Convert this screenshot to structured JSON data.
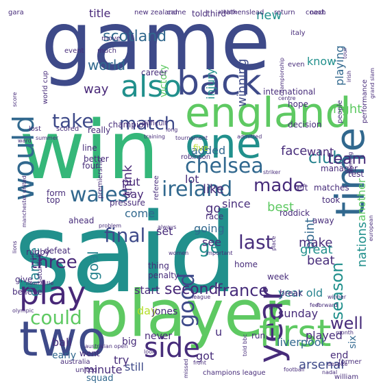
{
  "words": [
    {
      "text": "said",
      "color": "#21908c",
      "orientation": "horizontal"
    },
    {
      "text": "game",
      "color": "#3e4a89",
      "orientation": "horizontal"
    },
    {
      "text": "win",
      "color": "#35b779",
      "orientation": "horizontal"
    },
    {
      "text": "player",
      "color": "#5ec962",
      "orientation": "horizontal"
    },
    {
      "text": "england",
      "color": "#5ec962",
      "orientation": "horizontal"
    },
    {
      "text": "time",
      "color": "#31688e",
      "orientation": "vertical"
    },
    {
      "text": "one",
      "color": "#21908c",
      "orientation": "horizontal"
    },
    {
      "text": "back",
      "color": "#3e4a89",
      "orientation": "horizontal"
    },
    {
      "text": "two",
      "color": "#3e4a89",
      "orientation": "horizontal"
    },
    {
      "text": "year",
      "color": "#472c7a",
      "orientation": "vertical"
    },
    {
      "text": "first",
      "color": "#5ec962",
      "orientation": "horizontal"
    },
    {
      "text": "would",
      "color": "#31688e",
      "orientation": "vertical"
    },
    {
      "text": "also",
      "color": "#21908c",
      "orientation": "horizontal"
    },
    {
      "text": "play",
      "color": "#482878",
      "orientation": "horizontal"
    },
    {
      "text": "side",
      "color": "#472d7b",
      "orientation": "horizontal"
    },
    {
      "text": "ireland",
      "color": "#31688e",
      "orientation": "horizontal"
    },
    {
      "text": "wales",
      "color": "#31688e",
      "orientation": "horizontal"
    },
    {
      "text": "chelsea",
      "color": "#31688e",
      "orientation": "horizontal"
    },
    {
      "text": "good",
      "color": "#3e4a89",
      "orientation": "vertical"
    },
    {
      "text": "could",
      "color": "#5ec962",
      "orientation": "horizontal"
    },
    {
      "text": "season",
      "color": "#21908c",
      "orientation": "vertical"
    },
    {
      "text": "second",
      "color": "#482878",
      "orientation": "horizontal"
    },
    {
      "text": "france",
      "color": "#472d7b",
      "orientation": "horizontal"
    },
    {
      "text": "club",
      "color": "#26828e",
      "orientation": "horizontal"
    },
    {
      "text": "match",
      "color": "#3e4a89",
      "orientation": "horizontal"
    },
    {
      "text": "take",
      "color": "#3e4a89",
      "orientation": "horizontal"
    },
    {
      "text": "made",
      "color": "#472c7a",
      "orientation": "horizontal"
    },
    {
      "text": "last",
      "color": "#472d7b",
      "orientation": "horizontal"
    },
    {
      "text": "get",
      "color": "#21908c",
      "orientation": "horizontal"
    },
    {
      "text": "three",
      "color": "#482878",
      "orientation": "horizontal"
    },
    {
      "text": "final",
      "color": "#3e4a89",
      "orientation": "horizontal"
    },
    {
      "text": "team",
      "color": "#472c7a",
      "orientation": "horizontal"
    },
    {
      "text": "chance",
      "color": "#26828e",
      "orientation": "vertical"
    },
    {
      "text": "goal",
      "color": "#26828e",
      "orientation": "vertical"
    },
    {
      "text": "well",
      "color": "#472c7a",
      "orientation": "horizontal"
    },
    {
      "text": "scotland",
      "color": "#31688e",
      "orientation": "horizontal"
    },
    {
      "text": "think",
      "color": "#482878",
      "orientation": "vertical"
    },
    {
      "text": "new",
      "color": "#21908c",
      "orientation": "horizontal"
    },
    {
      "text": "world",
      "color": "#31688e",
      "orientation": "horizontal"
    },
    {
      "text": "victory",
      "color": "#5ec962",
      "orientation": "vertical"
    },
    {
      "text": "winning",
      "color": "#3e4a89",
      "orientation": "vertical"
    },
    {
      "text": "injury",
      "color": "#21908c",
      "orientation": "vertical"
    },
    {
      "text": "title",
      "color": "#482878",
      "orientation": "horizontal"
    },
    {
      "text": "playing",
      "color": "#31688e",
      "orientation": "vertical"
    },
    {
      "text": "know",
      "color": "#21908c",
      "orientation": "horizontal"
    },
    {
      "text": "right",
      "color": "#5ec962",
      "orientation": "horizontal"
    },
    {
      "text": "way",
      "color": "#482878",
      "orientation": "horizontal"
    },
    {
      "text": "added",
      "color": "#31688e",
      "orientation": "horizontal"
    },
    {
      "text": "face",
      "color": "#472c7a",
      "orientation": "horizontal"
    },
    {
      "text": "want",
      "color": "#482878",
      "orientation": "horizontal"
    },
    {
      "text": "lot",
      "color": "#472d7b",
      "orientation": "horizontal"
    },
    {
      "text": "like",
      "color": "#472d7b",
      "orientation": "horizontal"
    },
    {
      "text": "put",
      "color": "#482878",
      "orientation": "horizontal"
    },
    {
      "text": "point",
      "color": "#31688e",
      "orientation": "vertical"
    },
    {
      "text": "say",
      "color": "#482878",
      "orientation": "horizontal"
    },
    {
      "text": "since",
      "color": "#472d7b",
      "orientation": "horizontal"
    },
    {
      "text": "best",
      "color": "#5ec962",
      "orientation": "horizontal"
    },
    {
      "text": "go",
      "color": "#472c7a",
      "orientation": "horizontal"
    },
    {
      "text": "come",
      "color": "#31688e",
      "orientation": "horizontal"
    },
    {
      "text": "going",
      "color": "#31688e",
      "orientation": "horizontal"
    },
    {
      "text": "set",
      "color": "#472c7a",
      "orientation": "horizontal"
    },
    {
      "text": "see",
      "color": "#472c7a",
      "orientation": "horizontal"
    },
    {
      "text": "make",
      "color": "#472c7a",
      "orientation": "horizontal"
    },
    {
      "text": "great",
      "color": "#21908c",
      "orientation": "horizontal"
    },
    {
      "text": "beat",
      "color": "#472c7a",
      "orientation": "horizontal"
    },
    {
      "text": "nations",
      "color": "#21908c",
      "orientation": "vertical"
    },
    {
      "text": "another",
      "color": "#5ec962",
      "orientation": "vertical"
    },
    {
      "text": "start",
      "color": "#472c7a",
      "orientation": "horizontal"
    },
    {
      "text": "day",
      "color": "#b5de2b",
      "orientation": "horizontal"
    },
    {
      "text": "jones",
      "color": "#472c7a",
      "orientation": "horizontal"
    },
    {
      "text": "year old",
      "color": "#26828e",
      "orientation": "horizontal"
    },
    {
      "text": "six",
      "color": "#31688e",
      "orientation": "vertical"
    },
    {
      "text": "played",
      "color": "#472c7a",
      "orientation": "horizontal"
    },
    {
      "text": "end",
      "color": "#472c7a",
      "orientation": "horizontal"
    },
    {
      "text": "arsenal",
      "color": "#3e4a89",
      "orientation": "horizontal"
    },
    {
      "text": "try",
      "color": "#472c7a",
      "orientation": "horizontal"
    },
    {
      "text": "got",
      "color": "#472c7a",
      "orientation": "horizontal"
    },
    {
      "text": "still",
      "color": "#3e4a89",
      "orientation": "horizontal"
    },
    {
      "text": "minute",
      "color": "#472c7a",
      "orientation": "horizontal"
    },
    {
      "text": "ball",
      "color": "#472c7a",
      "orientation": "horizontal"
    },
    {
      "text": "u",
      "color": "#472d7b",
      "orientation": "horizontal"
    },
    {
      "text": "sunday",
      "color": "#472c7a",
      "orientation": "horizontal"
    },
    {
      "text": "liverpool",
      "color": "#31688e",
      "orientation": "horizontal"
    },
    {
      "text": "squad",
      "color": "#31688e",
      "orientation": "horizontal"
    },
    {
      "text": "never",
      "color": "#482878",
      "orientation": "horizontal"
    },
    {
      "text": "big",
      "color": "#472c7a",
      "orientation": "horizontal"
    },
    {
      "text": "early",
      "color": "#31688e",
      "orientation": "horizontal"
    },
    {
      "text": "went",
      "color": "#472c7a",
      "orientation": "horizontal"
    },
    {
      "text": "run",
      "color": "#472c7a",
      "orientation": "horizontal"
    },
    {
      "text": "break",
      "color": "#472c7a",
      "orientation": "horizontal"
    },
    {
      "text": "home",
      "color": "#472c7a",
      "orientation": "horizontal"
    },
    {
      "text": "week",
      "color": "#472c7a",
      "orientation": "horizontal"
    },
    {
      "text": "thing",
      "color": "#472c7a",
      "orientation": "horizontal"
    },
    {
      "text": "penalty",
      "color": "#472c7a",
      "orientation": "horizontal"
    },
    {
      "text": "roddick",
      "color": "#472c7a",
      "orientation": "horizontal"
    },
    {
      "text": "took",
      "color": "#472c7a",
      "orientation": "horizontal"
    },
    {
      "text": "left",
      "color": "#472c7a",
      "orientation": "horizontal"
    },
    {
      "text": "matches",
      "color": "#472c7a",
      "orientation": "horizontal"
    },
    {
      "text": "test",
      "color": "#472c7a",
      "orientation": "horizontal"
    },
    {
      "text": "manager",
      "color": "#472c7a",
      "orientation": "horizontal"
    },
    {
      "text": "four",
      "color": "#472c7a",
      "orientation": "horizontal"
    },
    {
      "text": "line",
      "color": "#472c7a",
      "orientation": "horizontal"
    },
    {
      "text": "better",
      "color": "#472c7a",
      "orientation": "horizontal"
    },
    {
      "text": "form",
      "color": "#472c7a",
      "orientation": "horizontal"
    },
    {
      "text": "top",
      "color": "#472c7a",
      "orientation": "horizontal"
    },
    {
      "text": "pressure",
      "color": "#472c7a",
      "orientation": "horizontal"
    },
    {
      "text": "race",
      "color": "#472c7a",
      "orientation": "horizontal"
    },
    {
      "text": "ahead",
      "color": "#472c7a",
      "orientation": "horizontal"
    },
    {
      "text": "away",
      "color": "#472c7a",
      "orientation": "horizontal"
    },
    {
      "text": "defeat",
      "color": "#472c7a",
      "orientation": "horizontal"
    },
    {
      "text": "rugby",
      "color": "#472c7a",
      "orientation": "horizontal"
    },
    {
      "text": "give",
      "color": "#472c7a",
      "orientation": "horizontal"
    },
    {
      "text": "believe",
      "color": "#472c7a",
      "orientation": "horizontal"
    },
    {
      "text": "five",
      "color": "#b5de2b",
      "orientation": "horizontal"
    },
    {
      "text": "robinson",
      "color": "#472c7a",
      "orientation": "horizontal"
    },
    {
      "text": "decision",
      "color": "#472c7a",
      "orientation": "horizontal"
    },
    {
      "text": "champion",
      "color": "#472c7a",
      "orientation": "horizontal"
    },
    {
      "text": "difficult",
      "color": "#472c7a",
      "orientation": "horizontal"
    },
    {
      "text": "hope",
      "color": "#472c7a",
      "orientation": "horizontal"
    },
    {
      "text": "international",
      "color": "#472c7a",
      "orientation": "horizontal"
    },
    {
      "text": "career",
      "color": "#472c7a",
      "orientation": "horizontal"
    },
    {
      "text": "much",
      "color": "#472c7a",
      "orientation": "horizontal"
    },
    {
      "text": "move",
      "color": "#472c7a",
      "orientation": "horizontal"
    },
    {
      "text": "event",
      "color": "#472c7a",
      "orientation": "horizontal"
    },
    {
      "text": "really",
      "color": "#472c7a",
      "orientation": "horizontal"
    },
    {
      "text": "scored",
      "color": "#472c7a",
      "orientation": "horizontal"
    },
    {
      "text": "lost",
      "color": "#472c7a",
      "orientation": "horizontal"
    },
    {
      "text": "athens",
      "color": "#472c7a",
      "orientation": "horizontal"
    },
    {
      "text": "coach",
      "color": "#472c7a",
      "orientation": "horizontal"
    },
    {
      "text": "return",
      "color": "#472c7a",
      "orientation": "horizontal"
    },
    {
      "text": "next",
      "color": "#472c7a",
      "orientation": "horizontal"
    },
    {
      "text": "lead",
      "color": "#472c7a",
      "orientation": "horizontal"
    },
    {
      "text": "told",
      "color": "#472c7a",
      "orientation": "horizontal"
    },
    {
      "text": "third",
      "color": "#472c7a",
      "orientation": "horizontal"
    },
    {
      "text": "athlete",
      "color": "#472c7a",
      "orientation": "horizontal"
    },
    {
      "text": "new zealand",
      "color": "#472c7a",
      "orientation": "horizontal"
    },
    {
      "text": "came",
      "color": "#472c7a",
      "orientation": "horizontal"
    },
    {
      "text": "gara",
      "color": "#472c7a",
      "orientation": "horizontal"
    },
    {
      "text": "italy",
      "color": "#472c7a",
      "orientation": "horizontal"
    },
    {
      "text": "even",
      "color": "#472c7a",
      "orientation": "horizontal"
    },
    {
      "text": "people",
      "color": "#472c7a",
      "orientation": "vertical"
    },
    {
      "text": "world cup",
      "color": "#472c7a",
      "orientation": "vertical"
    },
    {
      "text": "grand slam",
      "color": "#472c7a",
      "orientation": "vertical"
    },
    {
      "text": "championship",
      "color": "#472c7a",
      "orientation": "vertical"
    },
    {
      "text": "premiership",
      "color": "#472c7a",
      "orientation": "vertical"
    },
    {
      "text": "referee",
      "color": "#472c7a",
      "orientation": "vertical"
    },
    {
      "text": "performance",
      "color": "#472c7a",
      "orientation": "vertical"
    },
    {
      "text": "saturday",
      "color": "#472c7a",
      "orientation": "vertical"
    },
    {
      "text": "month",
      "color": "#472c7a",
      "orientation": "horizontal"
    },
    {
      "text": "former",
      "color": "#472c7a",
      "orientation": "horizontal"
    },
    {
      "text": "australian open",
      "color": "#472c7a",
      "orientation": "horizontal"
    },
    {
      "text": "australia",
      "color": "#472c7a",
      "orientation": "horizontal"
    },
    {
      "text": "united",
      "color": "#472c7a",
      "orientation": "horizontal"
    },
    {
      "text": "champions league",
      "color": "#472c7a",
      "orientation": "horizontal"
    },
    {
      "text": "football",
      "color": "#472c7a",
      "orientation": "horizontal"
    },
    {
      "text": "nadal",
      "color": "#472c7a",
      "orientation": "horizontal"
    },
    {
      "text": "despite",
      "color": "#472c7a",
      "orientation": "horizontal"
    },
    {
      "text": "william",
      "color": "#472c7a",
      "orientation": "horizontal"
    },
    {
      "text": "olympic",
      "color": "#472c7a",
      "orientation": "horizontal"
    },
    {
      "text": "newcastle",
      "color": "#472c7a",
      "orientation": "horizontal"
    },
    {
      "text": "manchester united",
      "color": "#472c7a",
      "orientation": "vertical"
    },
    {
      "text": "league",
      "color": "#472c7a",
      "orientation": "horizontal"
    },
    {
      "text": "front",
      "color": "#472c7a",
      "orientation": "horizontal"
    },
    {
      "text": "missed",
      "color": "#472c7a",
      "orientation": "vertical"
    },
    {
      "text": "feel",
      "color": "#472c7a",
      "orientation": "horizontal"
    },
    {
      "text": "centre",
      "color": "#472c7a",
      "orientation": "horizontal"
    },
    {
      "text": "training",
      "color": "#472c7a",
      "orientation": "horizontal"
    },
    {
      "text": "tournament",
      "color": "#472c7a",
      "orientation": "horizontal"
    },
    {
      "text": "admitted",
      "color": "#472c7a",
      "orientation": "horizontal"
    },
    {
      "text": "summer",
      "color": "#472c7a",
      "orientation": "horizontal"
    },
    {
      "text": "sport",
      "color": "#472c7a",
      "orientation": "horizontal"
    },
    {
      "text": "important",
      "color": "#472c7a",
      "orientation": "horizontal"
    },
    {
      "text": "look",
      "color": "#472c7a",
      "orientation": "horizontal"
    },
    {
      "text": "fan",
      "color": "#472c7a",
      "orientation": "horizontal"
    },
    {
      "text": "striker",
      "color": "#472c7a",
      "orientation": "horizontal"
    },
    {
      "text": "place",
      "color": "#472c7a",
      "orientation": "vertical"
    },
    {
      "text": "opening",
      "color": "#472c7a",
      "orientation": "vertical"
    },
    {
      "text": "lions",
      "color": "#472c7a",
      "orientation": "vertical"
    },
    {
      "text": "european",
      "color": "#472c7a",
      "orientation": "vertical"
    },
    {
      "text": "irish",
      "color": "#472c7a",
      "orientation": "vertical"
    },
    {
      "text": "tour",
      "color": "#472c7a",
      "orientation": "vertical"
    },
    {
      "text": "score",
      "color": "#472c7a",
      "orientation": "vertical"
    },
    {
      "text": "long",
      "color": "#472c7a",
      "orientation": "horizontal"
    },
    {
      "text": "always",
      "color": "#472c7a",
      "orientation": "horizontal"
    },
    {
      "text": "problem",
      "color": "#472c7a",
      "orientation": "horizontal"
    },
    {
      "text": "women",
      "color": "#472c7a",
      "orientation": "horizontal"
    },
    {
      "text": "forward",
      "color": "#472c7a",
      "orientation": "horizontal"
    },
    {
      "text": "winner",
      "color": "#472c7a",
      "orientation": "horizontal"
    },
    {
      "text": "told bbc",
      "color": "#472c7a",
      "orientation": "vertical"
    },
    {
      "text": "ward",
      "color": "#472c7a",
      "orientation": "horizontal"
    }
  ]
}
